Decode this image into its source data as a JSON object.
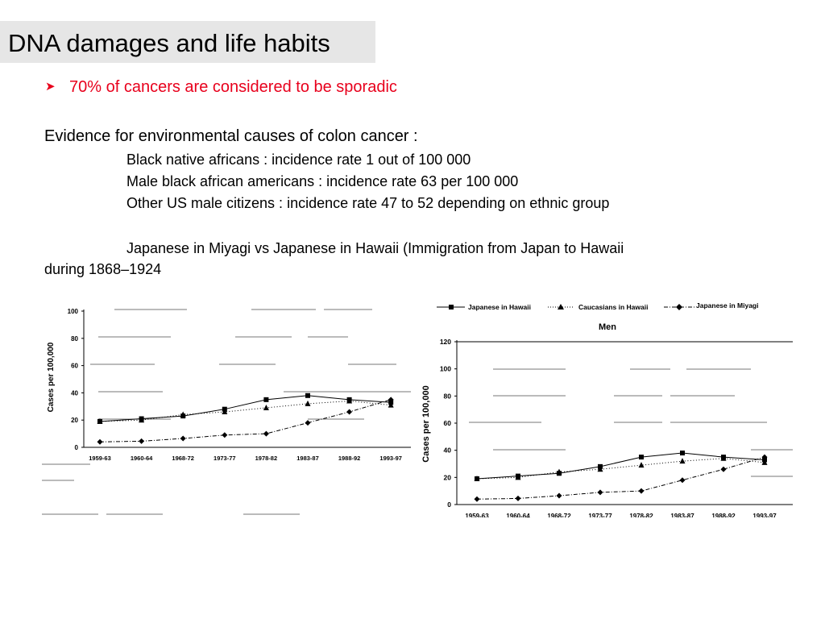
{
  "slide": {
    "title": "DNA damages and life habits",
    "bullet": "70% of cancers are considered to be sporadic",
    "evidence_heading": "Evidence for environmental causes of colon cancer :",
    "lines": [
      "Black native africans : incidence rate 1 out of 100 000",
      "Male black african americans : incidence rate 63 per 100 000",
      "Other US male citizens : incidence rate 47 to 52 depending on ethnic group"
    ],
    "japan_line1": "Japanese in Miyagi vs Japanese in Hawaii (Immigration from Japan to Hawaii",
    "japan_line2": "during 1868–1924"
  },
  "colors": {
    "bullet": "#e8001c",
    "title_bg": "#e6e6e6"
  },
  "icons": {
    "bullet": "arrowhead-bullet-icon"
  },
  "chart_data": [
    {
      "type": "line",
      "title": "",
      "xlabel": "",
      "ylabel": "Cases per 100,000",
      "ylim": [
        0,
        100
      ],
      "yticks": [
        0,
        20,
        40,
        60,
        80,
        100
      ],
      "categories": [
        "1959-63",
        "1960-64",
        "1968-72",
        "1973-77",
        "1978-82",
        "1983-87",
        "1988-92",
        "1993-97"
      ],
      "legend": "none",
      "series": [
        {
          "values": [
            19,
            21,
            23,
            28,
            35,
            38,
            35,
            33
          ],
          "marker": "square",
          "line": "solid"
        },
        {
          "values": [
            19,
            20,
            24,
            26,
            29,
            32,
            34,
            31
          ],
          "marker": "triangle",
          "line": "dotted"
        },
        {
          "values": [
            4,
            4.5,
            6.5,
            9,
            10,
            18,
            26,
            35
          ],
          "marker": "diamond",
          "line": "dash-dot"
        }
      ]
    },
    {
      "type": "line",
      "title": "Men",
      "xlabel": "",
      "ylabel": "Cases per 100,000",
      "ylim": [
        0,
        120
      ],
      "yticks": [
        0,
        20,
        40,
        60,
        80,
        100,
        120
      ],
      "categories": [
        "1959-63",
        "1960-64",
        "1968-72",
        "1973-77",
        "1978-82",
        "1983-87",
        "1988-92",
        "1993-97"
      ],
      "legend": "top",
      "series": [
        {
          "name": "Japanese in Hawaii",
          "values": [
            19,
            21,
            23,
            28,
            35,
            38,
            35,
            33
          ],
          "marker": "square",
          "line": "solid"
        },
        {
          "name": "Caucasians in Hawaii",
          "values": [
            19,
            20,
            24,
            26,
            29,
            32,
            34,
            31
          ],
          "marker": "triangle",
          "line": "dotted"
        },
        {
          "name": "Japanese in Miyagi",
          "values": [
            4,
            4.5,
            6.5,
            9,
            10,
            18,
            26,
            35
          ],
          "marker": "diamond",
          "line": "dash-dot"
        }
      ]
    }
  ]
}
